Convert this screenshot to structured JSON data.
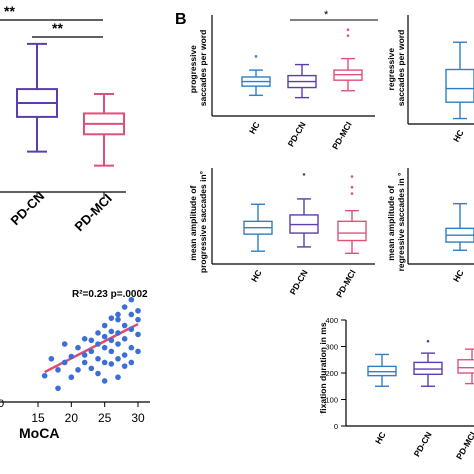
{
  "colors": {
    "hc": "#2e7fc9",
    "pdcn": "#5b3db0",
    "pdmci": "#e0507a",
    "scatter": "#3b6fd6",
    "fit": "#e24a6d",
    "axis": "#000000"
  },
  "panel_b_label": "B",
  "panel_a": {
    "sig_top": "**",
    "sig_second": "**",
    "xticks": [
      "PD-CN",
      "PD-MCI"
    ],
    "stat_text": "R²=0.23 p=.0002",
    "scatter_xlabel": "MoCA",
    "scatter_xticks": [
      "15",
      "20",
      "25",
      "30"
    ],
    "left_stub_tick": "0"
  },
  "chart_data": [
    {
      "type": "box",
      "panel": "A-top (cropped)",
      "categories": [
        "PD-CN",
        "PD-MCI"
      ],
      "series": [
        {
          "name": "PD-CN",
          "box": {
            "min": 18.5,
            "q1": 23.5,
            "median": 25.5,
            "q3": 27.5,
            "max": 34
          }
        },
        {
          "name": "PD-MCI",
          "box": {
            "min": 16.5,
            "q1": 21,
            "median": 22.5,
            "q3": 24,
            "max": 26.8
          }
        }
      ],
      "significance": [
        "**",
        "**"
      ]
    },
    {
      "type": "scatter",
      "panel": "A-bottom (cropped)",
      "xlabel": "MoCA",
      "xticks": [
        15,
        20,
        25,
        30
      ],
      "annotation": "R²=0.23 p=.0002",
      "fit_line": {
        "x": [
          16,
          30
        ],
        "y": [
          0.0,
          1.0
        ]
      },
      "points": [
        [
          16,
          0.12
        ],
        [
          17,
          0.35
        ],
        [
          18,
          0.2
        ],
        [
          19,
          0.3
        ],
        [
          20,
          0.38
        ],
        [
          21,
          0.5
        ],
        [
          22,
          0.4
        ],
        [
          22,
          0.3
        ],
        [
          23,
          0.6
        ],
        [
          23,
          0.45
        ],
        [
          24,
          0.35
        ],
        [
          24,
          0.7
        ],
        [
          24,
          0.55
        ],
        [
          25,
          0.65
        ],
        [
          25,
          0.8
        ],
        [
          25,
          0.5
        ],
        [
          25,
          0.3
        ],
        [
          26,
          0.9
        ],
        [
          26,
          0.6
        ],
        [
          26,
          0.72
        ],
        [
          26,
          0.45
        ],
        [
          27,
          0.88
        ],
        [
          27,
          0.7
        ],
        [
          27,
          0.55
        ],
        [
          27,
          0.95
        ],
        [
          28,
          1.05
        ],
        [
          28,
          0.8
        ],
        [
          28,
          0.62
        ],
        [
          28,
          0.4
        ],
        [
          29,
          0.95
        ],
        [
          29,
          0.75
        ],
        [
          29,
          0.5
        ],
        [
          29,
          1.15
        ],
        [
          30,
          0.88
        ],
        [
          30,
          0.68
        ],
        [
          18,
          -0.05
        ],
        [
          20,
          0.1
        ],
        [
          21,
          0.2
        ],
        [
          22,
          0.62
        ],
        [
          23,
          0.22
        ],
        [
          24,
          0.15
        ],
        [
          26,
          0.28
        ],
        [
          27,
          0.35
        ],
        [
          28,
          0.25
        ],
        [
          29,
          0.3
        ],
        [
          30,
          0.45
        ],
        [
          19,
          0.55
        ],
        [
          25,
          0.05
        ],
        [
          27,
          0.1
        ],
        [
          30,
          1.0
        ]
      ]
    },
    {
      "type": "box",
      "ylabel": "progressive\nsaccades per word",
      "categories": [
        "HC",
        "PD-CN",
        "PD-MCI"
      ],
      "ylim": [
        0,
        2.2
      ],
      "series": [
        {
          "name": "HC",
          "box": {
            "min": 0.45,
            "q1": 0.65,
            "median": 0.75,
            "q3": 0.85,
            "max": 1.0,
            "outliers": [
              1.3
            ]
          }
        },
        {
          "name": "PD-CN",
          "box": {
            "min": 0.4,
            "q1": 0.62,
            "median": 0.75,
            "q3": 0.88,
            "max": 1.12
          }
        },
        {
          "name": "PD-MCI",
          "box": {
            "min": 0.55,
            "q1": 0.78,
            "median": 0.9,
            "q3": 1.0,
            "max": 1.25,
            "outliers": [
              1.75,
              1.88
            ]
          }
        }
      ],
      "significance": "*"
    },
    {
      "type": "box",
      "ylabel": "regressive\nsaccades per word",
      "categories": [
        "HC"
      ],
      "series": [
        {
          "name": "HC",
          "box": {
            "min": 0.02,
            "q1": 0.08,
            "median": 0.13,
            "q3": 0.2,
            "max": 0.3
          }
        }
      ]
    },
    {
      "type": "box",
      "ylabel": "mean amplitude of\nprogressive saccades in°",
      "categories": [
        "HC",
        "PD-CN",
        "PD-MCI"
      ],
      "series": [
        {
          "name": "HC",
          "box": {
            "min": 2.1,
            "q1": 2.9,
            "median": 3.2,
            "q3": 3.5,
            "max": 4.3
          }
        },
        {
          "name": "PD-CN",
          "box": {
            "min": 2.3,
            "q1": 2.95,
            "median": 3.35,
            "q3": 3.8,
            "max": 4.55,
            "outliers": [
              5.7
            ]
          }
        },
        {
          "name": "PD-MCI",
          "box": {
            "min": 2.0,
            "q1": 2.6,
            "median": 2.95,
            "q3": 3.5,
            "max": 4.0,
            "outliers": [
              4.8,
              5.1,
              5.6
            ]
          }
        }
      ]
    },
    {
      "type": "box",
      "ylabel": "mean amplitude of\nregressive saccades in °",
      "categories": [
        "HC"
      ],
      "series": [
        {
          "name": "HC",
          "box": {
            "min": 1.0,
            "q1": 1.3,
            "median": 1.55,
            "q3": 1.8,
            "max": 2.7
          }
        }
      ]
    },
    {
      "type": "box",
      "ylabel": "fixation duration in ms",
      "categories": [
        "HC",
        "PD-CN",
        "PD-MCI"
      ],
      "yticks": [
        0,
        100,
        200,
        300,
        400
      ],
      "series": [
        {
          "name": "HC",
          "box": {
            "min": 150,
            "q1": 190,
            "median": 205,
            "q3": 225,
            "max": 270
          }
        },
        {
          "name": "PD-CN",
          "box": {
            "min": 150,
            "q1": 195,
            "median": 215,
            "q3": 240,
            "max": 275,
            "outliers": [
              320
            ]
          }
        },
        {
          "name": "PD-MCI",
          "box": {
            "min": 160,
            "q1": 200,
            "median": 220,
            "q3": 250,
            "max": 290
          }
        }
      ]
    }
  ]
}
